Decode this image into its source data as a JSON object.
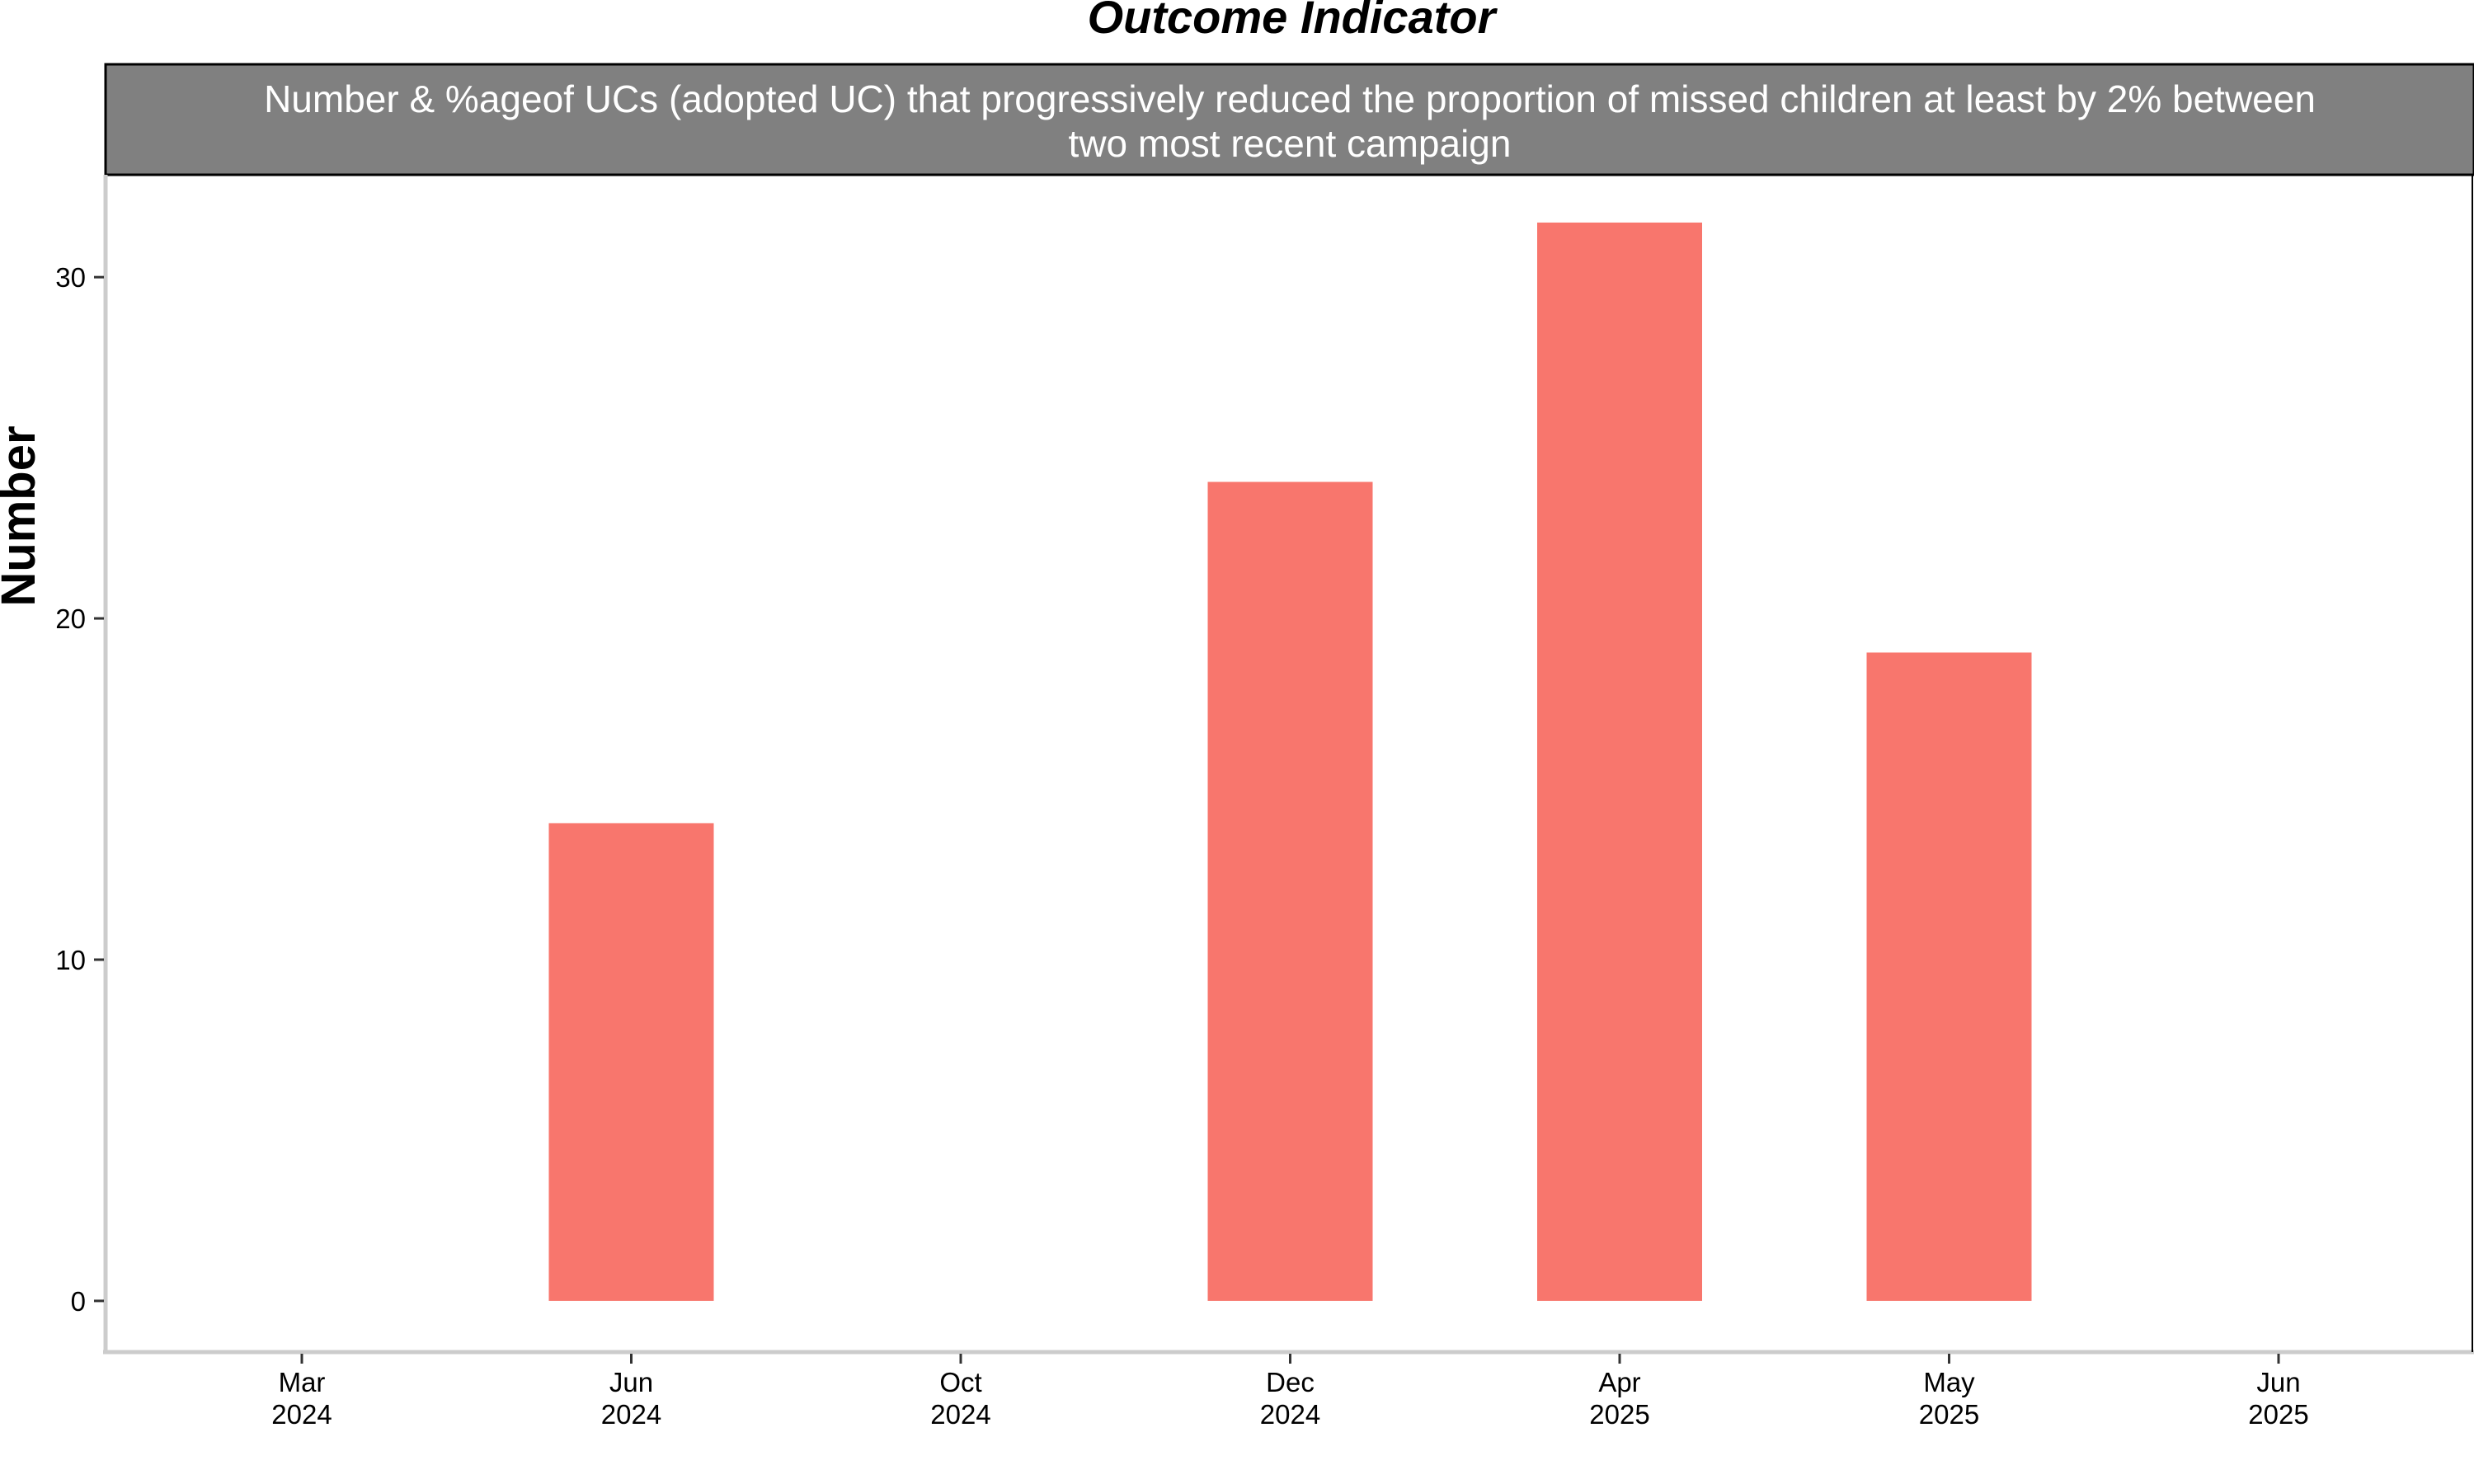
{
  "chart_data": {
    "type": "bar",
    "title": "Outcome Indicator",
    "facet_label": "Number & %ageof UCs (adopted UC) that progressively reduced the proportion of missed children at least by 2% between two most recent campaign",
    "xlabel": "",
    "ylabel": "Number",
    "ylim": [
      -1.5,
      33
    ],
    "yticks": [
      0,
      10,
      20,
      30
    ],
    "x_ticks": [
      {
        "month": "Mar",
        "year": "2024"
      },
      {
        "month": "Jun",
        "year": "2024"
      },
      {
        "month": "Oct",
        "year": "2024"
      },
      {
        "month": "Dec",
        "year": "2024"
      },
      {
        "month": "Apr",
        "year": "2025"
      },
      {
        "month": "May",
        "year": "2025"
      },
      {
        "month": "Jun",
        "year": "2025"
      }
    ],
    "bars": [
      {
        "month": "Jun",
        "year": "2024",
        "value": 14
      },
      {
        "month": "Dec",
        "year": "2024",
        "value": 24
      },
      {
        "month": "Apr",
        "year": "2025",
        "value": 31.6
      },
      {
        "month": "May",
        "year": "2025",
        "value": 19
      }
    ],
    "bar_color": "#F8766D",
    "strip_color": "#808080",
    "grid": false
  }
}
